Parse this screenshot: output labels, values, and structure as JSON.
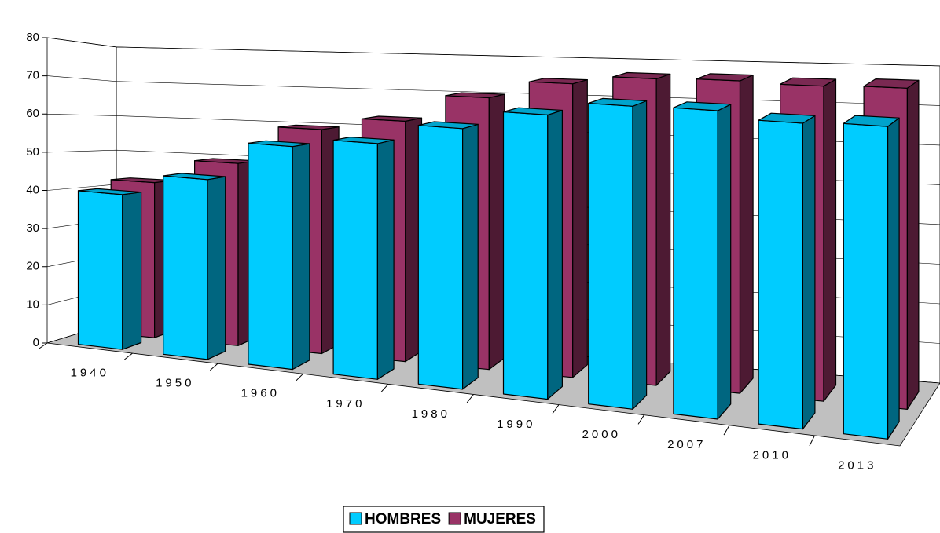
{
  "chart_data": {
    "type": "bar3d",
    "categories": [
      "1940",
      "1950",
      "1960",
      "1970",
      "1980",
      "1990",
      "2000",
      "2007",
      "2010",
      "2013"
    ],
    "series": [
      {
        "name": "HOMBRES",
        "color": "#00ccff",
        "values": [
          40.4,
          46.2,
          56.4,
          58.8,
          64.1,
          68.9,
          72.4,
          72.7,
          71.1,
          71.7
        ]
      },
      {
        "name": "MUJERES",
        "color": "#993366",
        "values": [
          42.5,
          49.2,
          59.6,
          63.0,
          70.2,
          74.8,
          77.0,
          77.4,
          77.0,
          77.4
        ]
      }
    ],
    "ylim": [
      0,
      80
    ],
    "yticks": [
      0,
      10,
      20,
      30,
      40,
      50,
      60,
      70,
      80
    ],
    "grid": true,
    "legend": "bottom"
  }
}
